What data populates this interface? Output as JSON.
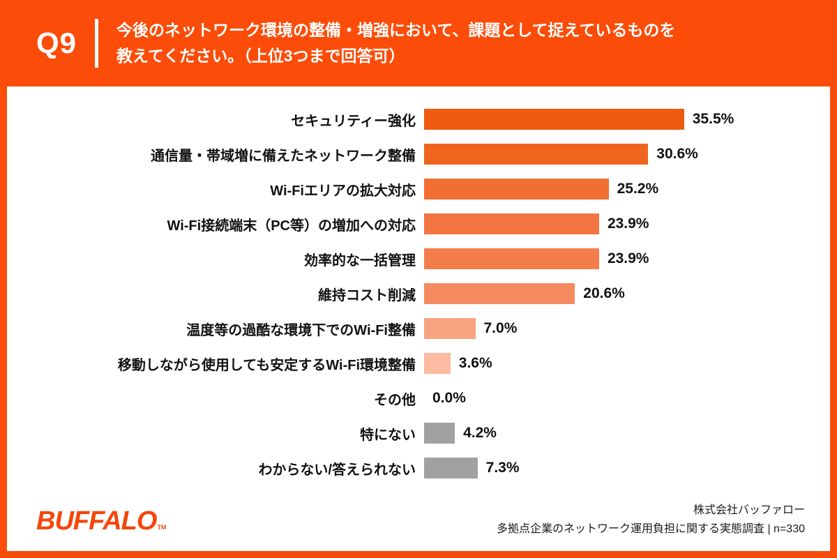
{
  "header": {
    "question_label": "Q9",
    "title_line1": "今後のネットワーク環境の整備・増強において、課題として捉えているものを",
    "title_line2": "教えてください。（上位3つまで回答可）"
  },
  "chart_data": {
    "type": "bar",
    "orientation": "horizontal",
    "title": "",
    "xlabel": "",
    "ylabel": "",
    "xlim": [
      0,
      40
    ],
    "grid": false,
    "legend": "none",
    "categories": [
      "セキュリティー強化",
      "通信量・帯域増に備えたネットワーク整備",
      "Wi-Fiエリアの拡大対応",
      "Wi-Fi接続端末（PC等）の増加への対応",
      "効率的な一括管理",
      "維持コスト削減",
      "温度等の過酷な環境下でのWi-Fi整備",
      "移動しながら使用しても安定するWi-Fi環境整備",
      "その他",
      "特にない",
      "わからない/答えられない"
    ],
    "values": [
      35.5,
      30.6,
      25.2,
      23.9,
      23.9,
      20.6,
      7.0,
      3.6,
      0.0,
      4.2,
      7.3
    ],
    "value_labels": [
      "35.5%",
      "30.6%",
      "25.2%",
      "23.9%",
      "23.9%",
      "20.6%",
      "7.0%",
      "3.6%",
      "0.0%",
      "4.2%",
      "7.3%"
    ],
    "bar_colors": [
      "#EE5A0E",
      "#F0641F",
      "#F26E33",
      "#F37541",
      "#F47D4C",
      "#F68A60",
      "#F8A37F",
      "#FABBA0",
      "#FFFFFF",
      "#A1A1A1",
      "#A1A1A1"
    ]
  },
  "footer": {
    "logo_text": "BUFFALO",
    "logo_tm": "TM",
    "company": "株式会社バッファロー",
    "survey": "多拠点企業のネットワーク運用負担に関する実態調査 | n=330"
  },
  "colors": {
    "background": "#FB4D09",
    "panel": "#FFFFFF",
    "text": "#111111",
    "accent": "#F5470A",
    "gray_bar": "#A1A1A1"
  }
}
